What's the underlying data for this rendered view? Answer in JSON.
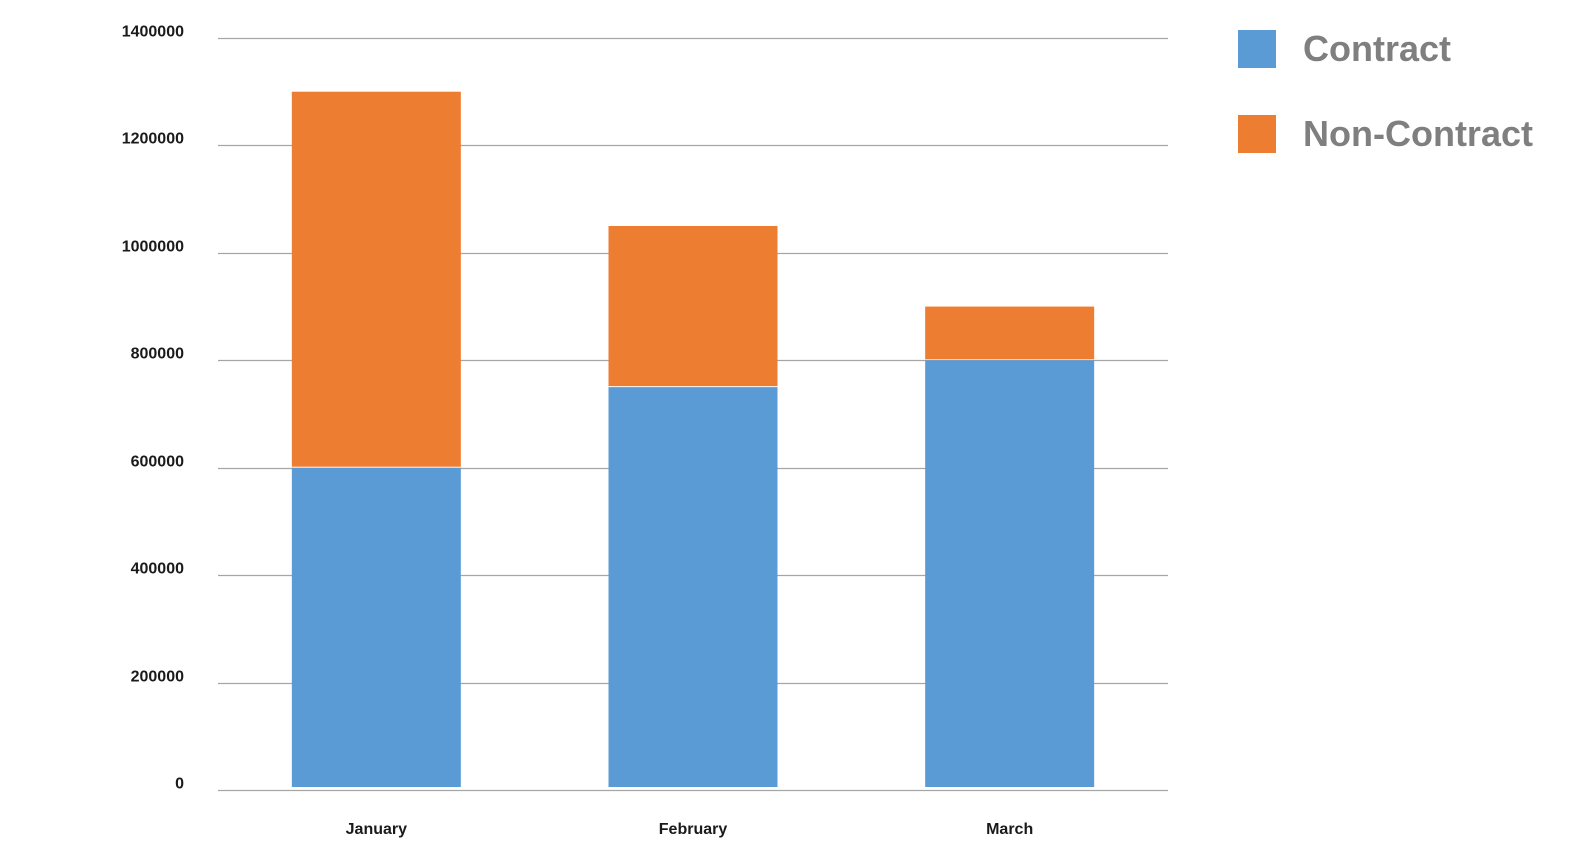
{
  "chart_data": {
    "type": "bar",
    "stacked": true,
    "categories": [
      "January",
      "February",
      "March"
    ],
    "series": [
      {
        "name": "Contract",
        "color": "#5b9bd5",
        "values": [
          600000,
          750000,
          800000
        ]
      },
      {
        "name": "Non-Contract",
        "color": "#ed7d31",
        "values": [
          700000,
          300000,
          100000
        ]
      }
    ],
    "ylim": [
      0,
      1400000
    ],
    "yticks": [
      0,
      200000,
      400000,
      600000,
      800000,
      1000000,
      1200000,
      1400000
    ],
    "grid": true,
    "legend_position": "top-right",
    "title": "",
    "xlabel": "",
    "ylabel": ""
  }
}
